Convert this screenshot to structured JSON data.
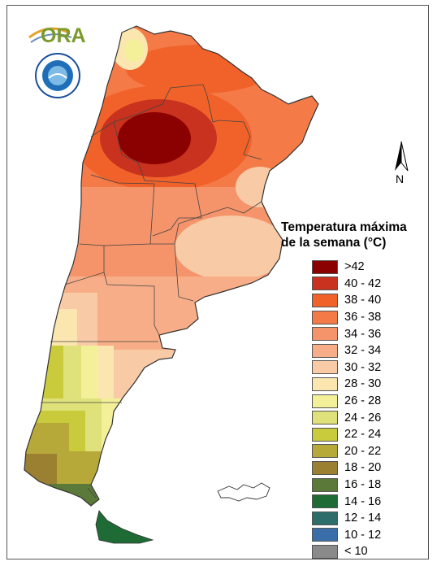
{
  "logo": {
    "text": "ORA"
  },
  "seal": {
    "name": "servicio-meteorologico-nacional"
  },
  "compass": {
    "label": "N"
  },
  "legend": {
    "title_line1": "Temperatura máxima",
    "title_line2": "de la semana (°C)",
    "items": [
      {
        "label": ">42",
        "color": "#8b0000"
      },
      {
        "label": "40 - 42",
        "color": "#c8321e"
      },
      {
        "label": "38 - 40",
        "color": "#f0622a"
      },
      {
        "label": "36 - 38",
        "color": "#f47a48"
      },
      {
        "label": "34 - 36",
        "color": "#f5946a"
      },
      {
        "label": "32 - 34",
        "color": "#f7ae88"
      },
      {
        "label": "30 - 32",
        "color": "#f9caa6"
      },
      {
        "label": "28 - 30",
        "color": "#fbe6b0"
      },
      {
        "label": "26 - 28",
        "color": "#f4f09a"
      },
      {
        "label": "24 - 26",
        "color": "#dfe27a"
      },
      {
        "label": "22 - 24",
        "color": "#c9cb3c"
      },
      {
        "label": "20 - 22",
        "color": "#b7a83a"
      },
      {
        "label": "18 - 20",
        "color": "#9a8030"
      },
      {
        "label": "16 - 18",
        "color": "#5b7a3a"
      },
      {
        "label": "14 - 16",
        "color": "#1f6b35"
      },
      {
        "label": "12 - 14",
        "color": "#2e6e6a"
      },
      {
        "label": "10 - 12",
        "color": "#3a6ea8"
      },
      {
        "label": "< 10",
        "color": "#8a8a8a"
      }
    ]
  }
}
